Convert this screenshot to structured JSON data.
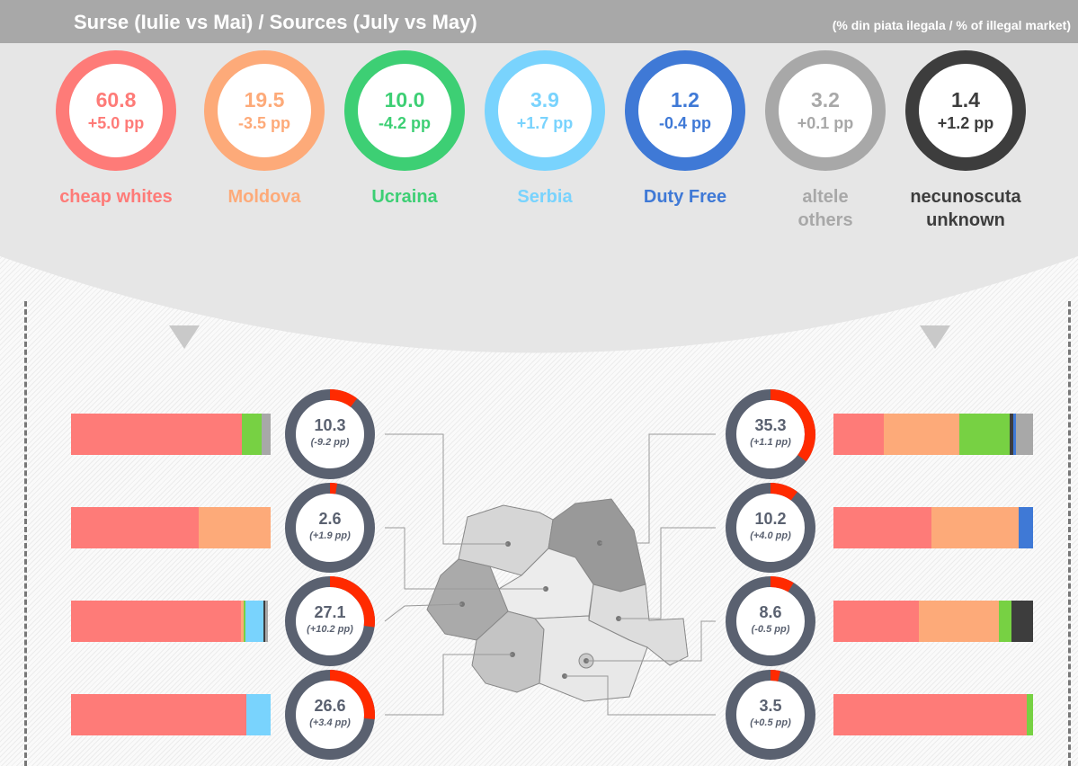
{
  "header": {
    "title": "Surse (Iulie vs Mai) / Sources (July vs May)",
    "subtitle": "(% din piata ilegala / % of illegal market)"
  },
  "sources": [
    {
      "value": "60.8",
      "change": "+5.0 pp",
      "label": "cheap whites",
      "label2": "",
      "color": "#fe7b78"
    },
    {
      "value": "19.5",
      "change": "-3.5 pp",
      "label": "Moldova",
      "label2": "",
      "color": "#fdaa79"
    },
    {
      "value": "10.0",
      "change": "-4.2 pp",
      "label": "Ucraina",
      "label2": "",
      "color": "#3dcf74"
    },
    {
      "value": "3.9",
      "change": "+1.7 pp",
      "label": "Serbia",
      "label2": "",
      "color": "#79d3fd"
    },
    {
      "value": "1.2",
      "change": "-0.4 pp",
      "label": "Duty Free",
      "label2": "",
      "color": "#3f79d6"
    },
    {
      "value": "3.2",
      "change": "+0.1 pp",
      "label": "altele",
      "label2": "others",
      "color": "#a8a8a8"
    },
    {
      "value": "1.4",
      "change": "+1.2 pp",
      "label": "necunoscuta",
      "label2": "unknown",
      "color": "#3d3d3d"
    }
  ],
  "bar_colors": {
    "cheap": "#fe7b78",
    "moldova": "#fdaa79",
    "ucraina": "#77d143",
    "serbia": "#79d3fd",
    "dutyfree": "#3f79d6",
    "others": "#a8a8a8",
    "unknown": "#3d3d3d"
  },
  "regions_left": [
    {
      "value": "10.3",
      "change": "(-9.2 pp)",
      "pct": 10.3,
      "mix": [
        [
          "cheap",
          85.6
        ],
        [
          "ucraina",
          10
        ],
        [
          "others",
          4.4
        ]
      ]
    },
    {
      "value": "2.6",
      "change": "(+1.9 pp)",
      "pct": 2.6,
      "mix": [
        [
          "cheap",
          64
        ],
        [
          "moldova",
          36
        ]
      ]
    },
    {
      "value": "27.1",
      "change": "(+10.2 pp)",
      "pct": 27.1,
      "mix": [
        [
          "cheap",
          85
        ],
        [
          "moldova",
          1.5
        ],
        [
          "ucraina",
          1
        ],
        [
          "serbia",
          9
        ],
        [
          "unknown",
          0.7
        ],
        [
          "others",
          1.3
        ]
      ]
    },
    {
      "value": "26.6",
      "change": "(+3.4 pp)",
      "pct": 26.6,
      "mix": [
        [
          "cheap",
          88
        ],
        [
          "serbia",
          12
        ]
      ]
    }
  ],
  "regions_right": [
    {
      "value": "35.3",
      "change": "(+1.1 pp)",
      "pct": 35.3,
      "mix": [
        [
          "cheap",
          25
        ],
        [
          "moldova",
          38
        ],
        [
          "ucraina",
          25.5
        ],
        [
          "unknown",
          1.5
        ],
        [
          "dutyfree",
          1.5
        ],
        [
          "others",
          8.5
        ]
      ]
    },
    {
      "value": "10.2",
      "change": "(+4.0 pp)",
      "pct": 10.2,
      "mix": [
        [
          "cheap",
          49
        ],
        [
          "moldova",
          44
        ],
        [
          "dutyfree",
          7
        ]
      ]
    },
    {
      "value": "8.6",
      "change": "(-0.5 pp)",
      "pct": 8.6,
      "mix": [
        [
          "cheap",
          43
        ],
        [
          "moldova",
          40
        ],
        [
          "ucraina",
          6
        ],
        [
          "unknown",
          11
        ]
      ]
    },
    {
      "value": "3.5",
      "change": "(+0.5 pp)",
      "pct": 3.5,
      "mix": [
        [
          "cheap",
          97
        ],
        [
          "ucraina",
          3
        ]
      ]
    }
  ]
}
